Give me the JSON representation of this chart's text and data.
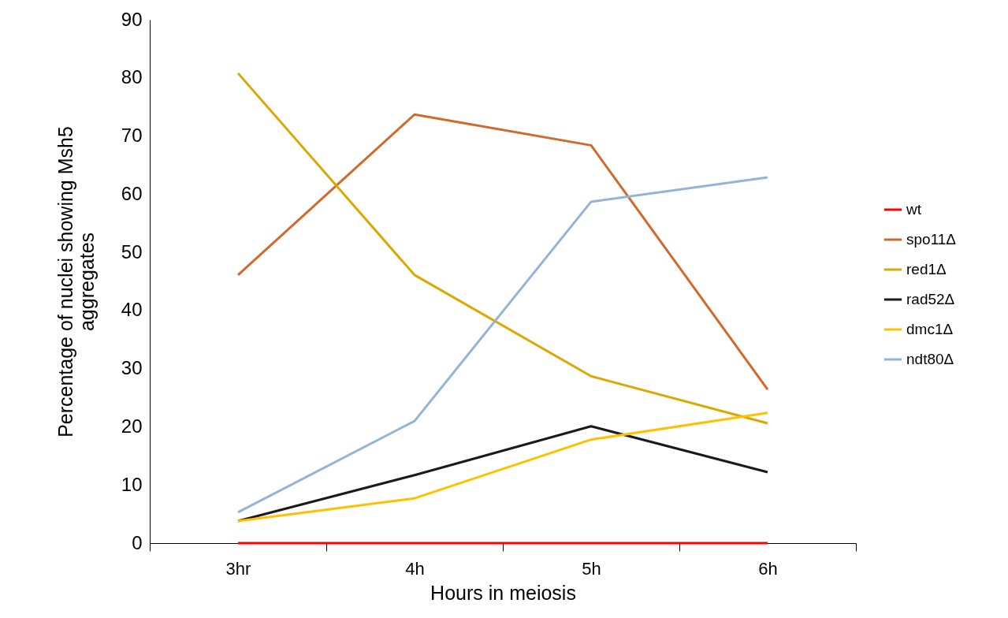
{
  "chart_data": {
    "type": "line",
    "xlabel": "Hours in meiosis",
    "ylabel": "Percentage of nuclei showing Msh5 aggregates",
    "categories": [
      "3hr",
      "4h",
      "5h",
      "6h"
    ],
    "series": [
      {
        "name": "wt",
        "color": "#ff0000",
        "values": [
          0,
          0,
          0,
          0
        ]
      },
      {
        "name": "spo11Δ",
        "color": "#d2692c",
        "values": [
          46.1,
          73.7,
          68.4,
          26.4
        ]
      },
      {
        "name": "red1Δ",
        "color": "#dba800",
        "values": [
          80.8,
          46.1,
          28.7,
          20.6
        ]
      },
      {
        "name": "rad52Δ",
        "color": "#1a1a1a",
        "values": [
          3.8,
          11.7,
          20.1,
          12.2
        ]
      },
      {
        "name": "dmc1Δ",
        "color": "#ffc000",
        "values": [
          3.8,
          7.7,
          17.8,
          22.4
        ]
      },
      {
        "name": "ndt80Δ",
        "color": "#95b3d7",
        "values": [
          5.3,
          21.0,
          58.7,
          62.9
        ]
      }
    ],
    "ylim": [
      0,
      90
    ],
    "yticks": [
      0,
      10,
      20,
      30,
      40,
      50,
      60,
      70,
      80,
      90
    ],
    "grid": false,
    "legend": "right",
    "marker": "none",
    "line_style": "solid"
  }
}
